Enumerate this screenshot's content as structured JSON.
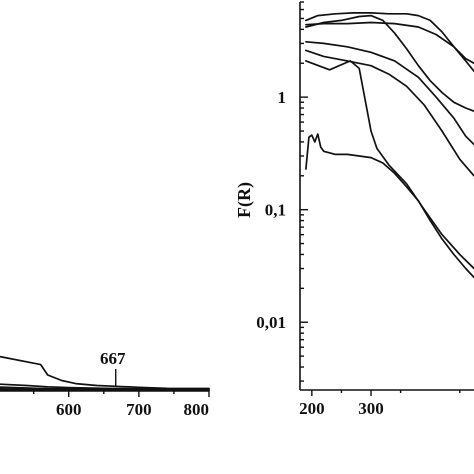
{
  "chart_data": [
    {
      "type": "line",
      "xlabel": "",
      "ylabel": "",
      "xlim": [
        502,
        800
      ],
      "ylim": [
        0,
        1
      ],
      "x_ticks": [
        600,
        700,
        800
      ],
      "x_tick_labels": [
        "600",
        "700",
        "800"
      ],
      "grid": false,
      "annotations": [
        {
          "text": "667",
          "x": 667
        }
      ],
      "series": [
        {
          "x": [
            502,
            560,
            570,
            590,
            610,
            640,
            667,
            700,
            740,
            800
          ],
          "y": [
            0.28,
            0.215,
            0.13,
            0.085,
            0.06,
            0.045,
            0.038,
            0.03,
            0.022,
            0.02
          ]
        },
        {
          "x": [
            502,
            540,
            570,
            600,
            650,
            700,
            800
          ],
          "y": [
            0.055,
            0.045,
            0.034,
            0.028,
            0.022,
            0.018,
            0.015
          ]
        },
        {
          "x": [
            502,
            560,
            600,
            650,
            700,
            800
          ],
          "y": [
            0.032,
            0.02,
            0.016,
            0.013,
            0.011,
            0.01
          ]
        },
        {
          "x": [
            502,
            560,
            600,
            700,
            800
          ],
          "y": [
            0.018,
            0.012,
            0.009,
            0.007,
            0.006
          ]
        },
        {
          "x": [
            502,
            600,
            700,
            800
          ],
          "y": [
            0.008,
            0.005,
            0.004,
            0.003
          ]
        }
      ]
    },
    {
      "type": "line",
      "xlabel": "",
      "ylabel": "F(R)",
      "xlim": [
        180,
        474
      ],
      "ylim": [
        0.0025,
        7
      ],
      "yscale": "log",
      "x_ticks": [
        200,
        300
      ],
      "x_tick_labels": [
        "200",
        "300"
      ],
      "y_ticks": [
        1,
        0.1,
        0.01
      ],
      "y_tick_labels": [
        "1",
        "0,1",
        "0,01"
      ],
      "grid": false,
      "series": [
        {
          "x": [
            190,
            210,
            240,
            270,
            300,
            330,
            360,
            380,
            400,
            420,
            440,
            460,
            474
          ],
          "y": [
            4.8,
            5.3,
            5.5,
            5.6,
            5.6,
            5.5,
            5.5,
            5.3,
            4.8,
            3.8,
            2.8,
            2.2,
            2.0
          ]
        },
        {
          "x": [
            190,
            220,
            250,
            280,
            300,
            320,
            340,
            360,
            380,
            400,
            420,
            440,
            460,
            474
          ],
          "y": [
            4.2,
            4.6,
            4.8,
            5.2,
            5.3,
            4.8,
            3.7,
            2.7,
            1.9,
            1.4,
            1.1,
            0.9,
            0.8,
            0.75
          ]
        },
        {
          "x": [
            190,
            220,
            260,
            300,
            340,
            380,
            410,
            440,
            460,
            474
          ],
          "y": [
            4.4,
            4.5,
            4.5,
            4.6,
            4.5,
            4.2,
            3.6,
            2.8,
            2.1,
            1.7
          ]
        },
        {
          "x": [
            190,
            220,
            260,
            300,
            340,
            380,
            410,
            440,
            460,
            474
          ],
          "y": [
            3.1,
            3.0,
            2.8,
            2.5,
            2.1,
            1.5,
            1.0,
            0.65,
            0.45,
            0.38
          ]
        },
        {
          "x": [
            190,
            220,
            260,
            300,
            330,
            360,
            390,
            420,
            450,
            474
          ],
          "y": [
            2.6,
            2.3,
            2.1,
            1.9,
            1.6,
            1.25,
            0.85,
            0.5,
            0.28,
            0.2
          ]
        },
        {
          "x": [
            190,
            230,
            265,
            280,
            290,
            300,
            310,
            330,
            360,
            390,
            420,
            450,
            474
          ],
          "y": [
            2.1,
            1.75,
            2.1,
            1.8,
            0.95,
            0.5,
            0.35,
            0.25,
            0.17,
            0.1,
            0.06,
            0.04,
            0.03
          ]
        },
        {
          "x": [
            190,
            195,
            200,
            205,
            210,
            215,
            220,
            240,
            260,
            280,
            300,
            320,
            340,
            360,
            380,
            400,
            420,
            440,
            460,
            474
          ],
          "y": [
            0.23,
            0.44,
            0.46,
            0.4,
            0.47,
            0.36,
            0.33,
            0.31,
            0.31,
            0.3,
            0.29,
            0.26,
            0.21,
            0.16,
            0.12,
            0.08,
            0.055,
            0.04,
            0.03,
            0.025
          ]
        }
      ]
    }
  ]
}
